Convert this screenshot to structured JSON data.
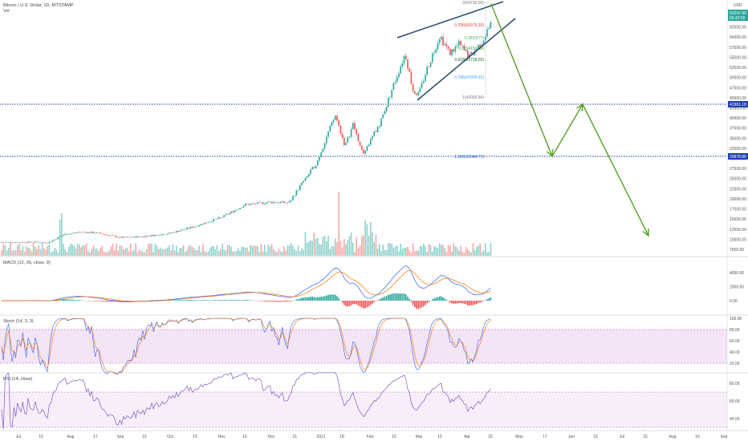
{
  "header": {
    "symbol_title": "Bitcoin / U.S. Dollar, 1D, BITSTAMP",
    "vol_label": "Vol",
    "currency": "USD"
  },
  "price_tags": {
    "last_price": "63247.90",
    "countdown": "06:42:59",
    "upper_hline": "41961.18",
    "lower_hline": "29878.86"
  },
  "fib_labels": [
    {
      "text": "0(64730.00)",
      "color": "#787b86"
    },
    {
      "text": "0.236(60379.20)",
      "color": "#e53935"
    },
    {
      "text": "0.382(57?)",
      "color": "#4caf50"
    },
    {
      "text": "0.5(54159.94)",
      "color": "#43a047"
    },
    {
      "text": "0.618(51718.02)",
      "color": "#1b5e20"
    },
    {
      "text": "0.786(47905.91)",
      "color": "#42a5f5"
    },
    {
      "text": "1(43056.84)",
      "color": "#787b86"
    },
    {
      "text": "1.618(29044.77)",
      "color": "#1565c0"
    }
  ],
  "panes": {
    "macd_label": "MACD (12, 26, close, 9)",
    "stoch_label": "Stoch (14, 3, 3)",
    "rsi_label": "RSI (14, close)"
  },
  "chart_data": {
    "type": "line",
    "title": "Bitcoin / U.S. Dollar, 1D, BITSTAMP",
    "price_axis_ticks": [
      65000,
      62500,
      60000,
      57500,
      55000,
      52500,
      50000,
      47500,
      45000,
      42500,
      40000,
      37500,
      35000,
      32500,
      30000,
      27500,
      25000,
      22500,
      20000,
      17500,
      15000,
      12500,
      10000,
      7500
    ],
    "ylim": [
      5000,
      67000
    ],
    "x_axis_labels": [
      "Jul",
      "15",
      "Aug",
      "17",
      "Sep",
      "15",
      "Oct",
      "15",
      "Nov",
      "16",
      "Dec",
      "15",
      "2021",
      "18",
      "Feb",
      "15",
      "Mar",
      "15",
      "Apr",
      "15",
      "May",
      "17",
      "Jun",
      "15",
      "Jul",
      "15",
      "Aug",
      "16",
      "Sep"
    ],
    "btc_close_approx": {
      "x": [
        "Jul",
        "Aug",
        "Sep",
        "Oct",
        "Nov",
        "Dec",
        "2021",
        "Jan-8",
        "Jan-22",
        "Feb",
        "Feb-21",
        "Mar",
        "Mar-13",
        "Apr",
        "Apr-13"
      ],
      "y": [
        9200,
        11500,
        10500,
        11000,
        13800,
        19500,
        29000,
        40500,
        31000,
        34000,
        57000,
        46000,
        61000,
        58500,
        63247
      ]
    },
    "projection_arrows": {
      "x": [
        "Apr-15",
        "May-22",
        "Jun-5",
        "Jul-20"
      ],
      "y": [
        64730,
        29878,
        41961,
        12000
      ]
    },
    "horizontal_levels": [
      41961.18,
      29878.86
    ],
    "macd": {
      "axis_ticks": [
        "4000.00",
        "2000.00",
        "0.00"
      ],
      "ylim": [
        -2500,
        5500
      ]
    },
    "stoch": {
      "axis_ticks": [
        "100.00",
        "80.00",
        "60.00",
        "40.00",
        "20.00"
      ],
      "ylim": [
        0,
        100
      ],
      "band": [
        20,
        80
      ]
    },
    "rsi": {
      "axis_ticks": [
        "80.00",
        "60.00",
        "40.00"
      ],
      "ylim": [
        25,
        95
      ],
      "band": [
        30,
        70
      ]
    }
  }
}
